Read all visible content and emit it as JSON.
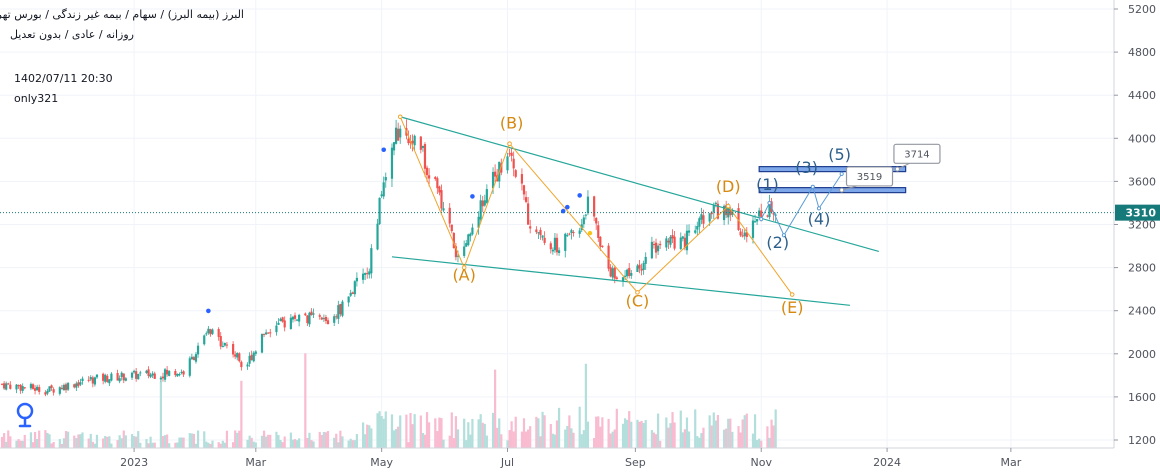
{
  "header": {
    "symbol_line": "البرز (بیمه البرز) / سهام / بیمه غیر زندگی / بورس تهران",
    "timeframe_line": "روزانه / عادی / بدون تعدیل",
    "datetime": "1402/07/11 20:30",
    "author": "only321"
  },
  "logo_icon": "tradingview-logo-icon",
  "chart_data": {
    "type": "candlestick",
    "price_axis": {
      "ticks": [
        5200,
        4800,
        4400,
        4000,
        3600,
        3200,
        2800,
        2400,
        2000,
        1600,
        1200
      ],
      "ylim": [
        1200,
        5250
      ],
      "scale": "linear"
    },
    "time_axis": {
      "ticks": [
        "2023",
        "Mar",
        "May",
        "Jul",
        "Sep",
        "Nov",
        "2024",
        "Mar"
      ],
      "xlim": [
        "2022-10-28",
        "2024-04-20"
      ]
    },
    "last_price": 3310,
    "price_series_anchors": [
      {
        "date": "2022-10-28",
        "price": 1720
      },
      {
        "date": "2022-11-20",
        "price": 1660
      },
      {
        "date": "2022-12-10",
        "price": 1760
      },
      {
        "date": "2023-01-01",
        "price": 1800
      },
      {
        "date": "2023-01-25",
        "price": 1830
      },
      {
        "date": "2023-02-06",
        "price": 2200
      },
      {
        "date": "2023-02-15",
        "price": 2080
      },
      {
        "date": "2023-02-24",
        "price": 1880
      },
      {
        "date": "2023-03-05",
        "price": 2200
      },
      {
        "date": "2023-03-22",
        "price": 2350
      },
      {
        "date": "2023-04-05",
        "price": 2300
      },
      {
        "date": "2023-04-10",
        "price": 2400
      },
      {
        "date": "2023-04-25",
        "price": 2800
      },
      {
        "date": "2023-05-01",
        "price": 3500
      },
      {
        "date": "2023-05-10",
        "price": 4150
      },
      {
        "date": "2023-05-20",
        "price": 3900
      },
      {
        "date": "2023-06-01",
        "price": 3300
      },
      {
        "date": "2023-06-08",
        "price": 2800
      },
      {
        "date": "2023-06-16",
        "price": 3300
      },
      {
        "date": "2023-06-28",
        "price": 3750
      },
      {
        "date": "2023-07-02",
        "price": 3950
      },
      {
        "date": "2023-07-12",
        "price": 3200
      },
      {
        "date": "2023-07-25",
        "price": 3000
      },
      {
        "date": "2023-08-06",
        "price": 3200
      },
      {
        "date": "2023-08-10",
        "price": 3500
      },
      {
        "date": "2023-08-18",
        "price": 2800
      },
      {
        "date": "2023-08-30",
        "price": 2700
      },
      {
        "date": "2023-09-10",
        "price": 3000
      },
      {
        "date": "2023-09-25",
        "price": 3050
      },
      {
        "date": "2023-10-05",
        "price": 3300
      },
      {
        "date": "2023-10-15",
        "price": 3350
      },
      {
        "date": "2023-10-25",
        "price": 3100
      },
      {
        "date": "2023-11-02",
        "price": 3350
      },
      {
        "date": "2023-11-08",
        "price": 3310
      }
    ],
    "trendlines": [
      {
        "from": {
          "date": "2023-05-10",
          "price": 4200
        },
        "to": {
          "date": "2023-12-28",
          "price": 2950
        }
      },
      {
        "from": {
          "date": "2023-05-06",
          "price": 2900
        },
        "to": {
          "date": "2023-12-14",
          "price": 2450
        }
      }
    ],
    "wave_path_orange": [
      {
        "date": "2023-05-10",
        "price": 4200
      },
      {
        "date": "2023-06-10",
        "price": 2800
      },
      {
        "date": "2023-07-02",
        "price": 3950
      },
      {
        "date": "2023-09-02",
        "price": 2570
      },
      {
        "date": "2023-10-16",
        "price": 3370
      },
      {
        "date": "2023-11-16",
        "price": 2550
      }
    ],
    "wave_labels_abcde": [
      {
        "text": "(A)",
        "date": "2023-06-10",
        "price": 2680
      },
      {
        "text": "(B)",
        "date": "2023-07-03",
        "price": 4090
      },
      {
        "text": "(C)",
        "date": "2023-09-02",
        "price": 2440
      },
      {
        "text": "(D)",
        "date": "2023-10-16",
        "price": 3500
      },
      {
        "text": "(E)",
        "date": "2023-11-16",
        "price": 2380
      }
    ],
    "wave_path_blue": [
      {
        "date": "2023-11-01",
        "price": 3250
      },
      {
        "date": "2023-11-05",
        "price": 3400
      },
      {
        "date": "2023-11-12",
        "price": 3100
      },
      {
        "date": "2023-11-26",
        "price": 3550
      },
      {
        "date": "2023-11-29",
        "price": 3350
      },
      {
        "date": "2023-12-10",
        "price": 3670
      }
    ],
    "wave_labels_12345": [
      {
        "text": "(1)",
        "date": "2023-11-04",
        "price": 3520
      },
      {
        "text": "(2)",
        "date": "2023-11-09",
        "price": 2980
      },
      {
        "text": "(3)",
        "date": "2023-11-23",
        "price": 3680
      },
      {
        "text": "(4)",
        "date": "2023-11-29",
        "price": 3200
      },
      {
        "text": "(5)",
        "date": "2023-12-09",
        "price": 3800
      }
    ],
    "levels": [
      {
        "price": 3519,
        "label": "3519",
        "from_date": "2023-10-31",
        "to_date": "2024-01-10"
      },
      {
        "price": 3714,
        "label": "3714",
        "from_date": "2023-10-31",
        "to_date": "2024-01-10"
      }
    ],
    "dividend_marks": [
      "2023-02-06",
      "2023-05-02",
      "2023-06-14",
      "2023-07-28",
      "2023-07-30",
      "2023-08-05"
    ],
    "colors": {
      "up": "#26a69a",
      "down": "#ef5350",
      "volume_up": "#b2dfdb",
      "volume_down": "#f8bbd0",
      "trendline": "#26a69a",
      "wave_orange": "#f0a52b",
      "wave_label_orange": "#d68910",
      "wave_blue": "#5b9bd5",
      "wave_label_blue": "#2c5f8a",
      "level_box": "#1e3d8f",
      "last_price_bg": "#16797a",
      "grid": "#f0f3fa",
      "axis_text": "#50535e"
    }
  }
}
